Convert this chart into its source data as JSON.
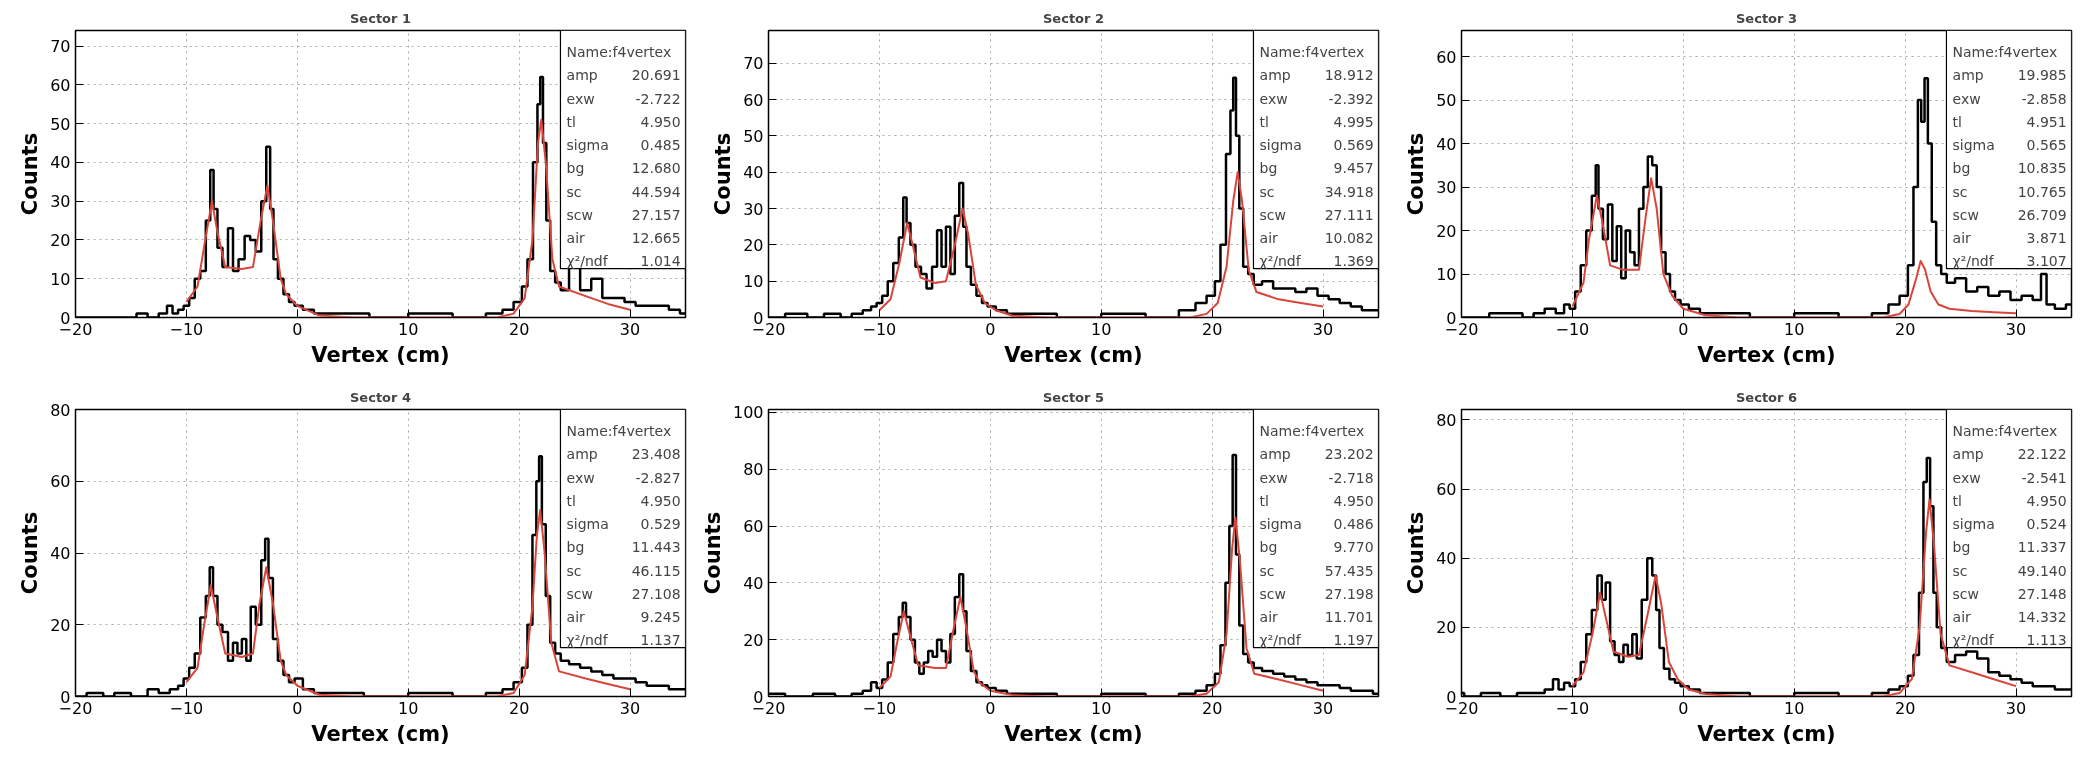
{
  "chart_data": [
    {
      "type": "step",
      "title": "Sector 1",
      "xlabel": "Vertex (cm)",
      "ylabel": "Counts",
      "xlim": [
        -20,
        35
      ],
      "ylim": [
        0,
        74
      ],
      "xticks": [
        -20,
        -10,
        0,
        10,
        20,
        30
      ],
      "yticks": [
        0,
        10,
        20,
        30,
        40,
        50,
        60,
        70
      ],
      "grid": true,
      "annotations": [
        "Name:f4vertex",
        "amp 20.691",
        "exw -2.722",
        "tl 4.950",
        "sigma 0.485",
        "bg 12.680",
        "sc 44.594",
        "scw 27.157",
        "air 12.665",
        "χ²/ndf 1.014"
      ],
      "series": [
        {
          "color": "#000000",
          "x": [
            -20,
            -15,
            -14,
            -13,
            -12,
            -11.5,
            -11,
            -10.5,
            -10,
            -9.5,
            -9,
            -8.5,
            -8,
            -7.7,
            -7.4,
            -7,
            -6.5,
            -6,
            -5.6,
            -5,
            -4.5,
            -4,
            -3.5,
            -3,
            -2.6,
            -2.3,
            -2,
            -1.5,
            -1,
            -0.5,
            0,
            1,
            2,
            3,
            5,
            8,
            12,
            16,
            18,
            19,
            20,
            20.5,
            21,
            21.5,
            21.8,
            22,
            22.3,
            22.6,
            23,
            23.5,
            24,
            25,
            26,
            27,
            28,
            29,
            30,
            31,
            32,
            33,
            34,
            35
          ],
          "values": [
            0,
            0,
            1,
            0,
            1,
            3,
            1,
            2,
            3,
            5,
            10,
            12,
            25,
            38,
            28,
            18,
            13,
            23,
            12,
            15,
            21,
            20,
            17,
            30,
            44,
            28,
            15,
            10,
            6,
            4,
            3,
            2,
            1,
            1,
            1,
            0,
            1,
            0,
            1,
            2,
            4,
            8,
            15,
            40,
            55,
            62,
            45,
            25,
            12,
            9,
            7,
            13,
            7,
            10,
            5,
            5,
            4,
            3,
            3,
            3,
            2,
            1
          ]
        },
        {
          "type": "line",
          "color": "#d9453a",
          "x": [
            -10,
            -9,
            -8.3,
            -7.7,
            -7.2,
            -6.5,
            -5,
            -4,
            -3.3,
            -2.7,
            -2.2,
            -1.5,
            -1,
            0,
            2,
            5,
            18,
            19.5,
            20.5,
            21.2,
            21.7,
            22,
            22.4,
            23,
            23.6,
            26,
            28,
            30
          ],
          "values": [
            4,
            8,
            20,
            30,
            22,
            13,
            12.5,
            13,
            25,
            34,
            25,
            10,
            6,
            3,
            0.5,
            0,
            0,
            1,
            5,
            20,
            45,
            51,
            40,
            15,
            8,
            5.5,
            3.5,
            2
          ]
        }
      ]
    },
    {
      "type": "step",
      "title": "Sector 2",
      "xlabel": "Vertex (cm)",
      "ylabel": "Counts",
      "xlim": [
        -20,
        35
      ],
      "ylim": [
        0,
        79
      ],
      "xticks": [
        -20,
        -10,
        0,
        10,
        20,
        30
      ],
      "yticks": [
        0,
        10,
        20,
        30,
        40,
        50,
        60,
        70
      ],
      "grid": true,
      "annotations": [
        "Name:f4vertex",
        "amp 18.912",
        "exw -2.392",
        "tl 4.995",
        "sigma 0.569",
        "bg 9.457",
        "sc 34.918",
        "scw 27.111",
        "air 10.082",
        "χ²/ndf 1.369"
      ],
      "series": [
        {
          "color": "#000000",
          "x": [
            -20,
            -17,
            -16,
            -14,
            -13,
            -12,
            -11,
            -10.5,
            -10,
            -9.5,
            -9,
            -8.5,
            -8,
            -7.7,
            -7.4,
            -7,
            -6.5,
            -6,
            -5.5,
            -5,
            -4.6,
            -4.2,
            -3.8,
            -3.4,
            -3,
            -2.6,
            -2.3,
            -2,
            -1.5,
            -1,
            -0.5,
            0,
            1,
            2,
            4,
            8,
            12,
            16,
            18,
            19,
            20,
            20.5,
            21,
            21.5,
            21.8,
            22,
            22.3,
            22.6,
            23,
            23.5,
            24,
            25,
            26,
            27,
            28,
            29,
            30,
            31,
            32,
            33,
            34,
            35
          ],
          "values": [
            0,
            1,
            0,
            1,
            0,
            1,
            2,
            3,
            4,
            6,
            10,
            15,
            22,
            33,
            26,
            20,
            14,
            12,
            8,
            14,
            24,
            14,
            25,
            12,
            28,
            37,
            25,
            14,
            9,
            6,
            4,
            3,
            2,
            1,
            1,
            0,
            1,
            0,
            2,
            4,
            6,
            10,
            20,
            45,
            57,
            66,
            50,
            30,
            14,
            12,
            9,
            10,
            8,
            8,
            7,
            8,
            6,
            5,
            4,
            3,
            2,
            2
          ]
        },
        {
          "type": "line",
          "color": "#d9453a",
          "x": [
            -10,
            -9,
            -8.2,
            -7.5,
            -7,
            -6.3,
            -5,
            -4,
            -3.2,
            -2.5,
            -2,
            -1.3,
            -0.5,
            0.5,
            2,
            5,
            18,
            19.5,
            20.5,
            21.3,
            21.9,
            22.3,
            22.7,
            23.3,
            24,
            26,
            28,
            30
          ],
          "values": [
            2,
            5,
            15,
            26,
            20,
            11,
            9.5,
            10,
            20,
            30,
            23,
            9,
            4,
            2,
            0.5,
            0,
            0,
            1,
            4,
            14,
            32,
            40,
            32,
            13,
            7,
            5,
            4,
            3
          ]
        }
      ]
    },
    {
      "type": "step",
      "title": "Sector 3",
      "xlabel": "Vertex (cm)",
      "ylabel": "Counts",
      "xlim": [
        -20,
        35
      ],
      "ylim": [
        0,
        66
      ],
      "xticks": [
        -20,
        -10,
        0,
        10,
        20,
        30
      ],
      "yticks": [
        0,
        10,
        20,
        30,
        40,
        50,
        60
      ],
      "grid": true,
      "annotations": [
        "Name:f4vertex",
        "amp 19.985",
        "exw -2.858",
        "tl 4.951",
        "sigma 0.565",
        "bg 10.835",
        "sc 10.765",
        "scw 26.709",
        "air 3.871",
        "χ²/ndf 3.107"
      ],
      "series": [
        {
          "color": "#000000",
          "x": [
            -20,
            -15,
            -14,
            -13,
            -12,
            -11,
            -10.5,
            -10,
            -9.5,
            -9,
            -8.5,
            -8,
            -7.8,
            -7.5,
            -7,
            -6.6,
            -6.2,
            -5.8,
            -5.4,
            -5,
            -4.6,
            -4.2,
            -3.8,
            -3.4,
            -3,
            -2.6,
            -2.2,
            -1.8,
            -1.4,
            -1,
            -0.5,
            0,
            1,
            2,
            4,
            8,
            12,
            16,
            18,
            19,
            20,
            20.5,
            21,
            21.3,
            21.6,
            21.9,
            22.2,
            22.6,
            23,
            23.5,
            24,
            25,
            26,
            27,
            28,
            29,
            30,
            31,
            32,
            32.5,
            33,
            34,
            35
          ],
          "values": [
            0,
            1,
            0,
            1,
            2,
            1,
            3,
            2,
            6,
            12,
            20,
            28,
            35,
            25,
            18,
            26,
            13,
            21,
            9,
            20,
            15,
            12,
            25,
            30,
            37,
            35,
            30,
            15,
            10,
            6,
            4,
            3,
            2,
            1,
            1,
            0,
            1,
            0,
            1,
            3,
            5,
            12,
            30,
            50,
            45,
            55,
            40,
            22,
            12,
            10,
            8,
            9,
            6,
            7,
            5,
            6,
            4,
            5,
            4,
            10,
            3,
            2,
            3
          ]
        },
        {
          "type": "line",
          "color": "#d9453a",
          "x": [
            -10,
            -9,
            -8.5,
            -7.8,
            -7.3,
            -6.6,
            -5.5,
            -4,
            -3.4,
            -2.9,
            -2.4,
            -1.8,
            -1,
            0,
            2,
            5,
            18,
            19.5,
            20.3,
            21,
            21.4,
            21.8,
            22.3,
            23,
            24,
            26,
            28,
            30
          ],
          "values": [
            2.5,
            8,
            18,
            28,
            22,
            12,
            11,
            11,
            23,
            32,
            25,
            10,
            5,
            2,
            0.5,
            0,
            0,
            0.8,
            3,
            9,
            13,
            11,
            6,
            3,
            2,
            1.5,
            1.2,
            1
          ]
        }
      ]
    },
    {
      "type": "step",
      "title": "Sector 4",
      "xlabel": "Vertex (cm)",
      "ylabel": "Counts",
      "xlim": [
        -20,
        35
      ],
      "ylim": [
        0,
        80
      ],
      "xticks": [
        -20,
        -10,
        0,
        10,
        20,
        30
      ],
      "yticks": [
        0,
        20,
        40,
        60,
        80
      ],
      "grid": true,
      "annotations": [
        "Name:f4vertex",
        "amp 23.408",
        "exw -2.827",
        "tl 4.950",
        "sigma 0.529",
        "bg 11.443",
        "sc 46.115",
        "scw 27.108",
        "air 9.245",
        "χ²/ndf 1.137"
      ],
      "series": [
        {
          "color": "#000000",
          "x": [
            -20,
            -18,
            -17,
            -16,
            -14,
            -13,
            -12,
            -11,
            -10.5,
            -10,
            -9.5,
            -9,
            -8.5,
            -8,
            -7.8,
            -7.4,
            -7,
            -6.5,
            -6,
            -5.6,
            -5.2,
            -4.8,
            -4.4,
            -4,
            -3.5,
            -3,
            -2.8,
            -2.4,
            -2,
            -1.5,
            -1,
            -0.5,
            0,
            1,
            2,
            4,
            8,
            12,
            16,
            18,
            19,
            20,
            20.5,
            21,
            21.4,
            21.7,
            21.9,
            22.2,
            22.6,
            23,
            23.5,
            24,
            25,
            26,
            27,
            28,
            29,
            30,
            31,
            32,
            33,
            34,
            35
          ],
          "values": [
            0,
            1,
            0,
            1,
            0,
            2,
            1,
            2,
            3,
            5,
            8,
            12,
            22,
            28,
            36,
            28,
            20,
            18,
            10,
            15,
            12,
            16,
            10,
            25,
            20,
            38,
            44,
            33,
            16,
            10,
            6,
            4,
            5,
            2,
            1,
            1,
            0,
            1,
            0,
            1,
            2,
            4,
            8,
            20,
            45,
            60,
            67,
            48,
            28,
            15,
            12,
            10,
            9,
            8,
            7,
            6,
            5,
            5,
            4,
            3,
            3,
            2,
            2
          ]
        },
        {
          "type": "line",
          "color": "#d9453a",
          "x": [
            -10,
            -9,
            -8.4,
            -7.8,
            -7.2,
            -6.5,
            -5,
            -4,
            -3.4,
            -2.8,
            -2.2,
            -1.5,
            -1,
            0,
            2,
            5,
            18,
            19.5,
            20.5,
            21.2,
            21.6,
            21.9,
            22.3,
            22.9,
            23.6,
            26,
            28,
            30
          ],
          "values": [
            4,
            8,
            20,
            31,
            22,
            12,
            11,
            12,
            26,
            36,
            26,
            10,
            6,
            3,
            0.5,
            0,
            0,
            1,
            6,
            25,
            45,
            52,
            40,
            15,
            7,
            5,
            3.5,
            2
          ]
        }
      ]
    },
    {
      "type": "step",
      "title": "Sector 5",
      "xlabel": "Vertex (cm)",
      "ylabel": "Counts",
      "xlim": [
        -20,
        35
      ],
      "ylim": [
        0,
        101
      ],
      "xticks": [
        -20,
        -10,
        0,
        10,
        20,
        30
      ],
      "yticks": [
        0,
        20,
        40,
        60,
        80,
        100
      ],
      "grid": true,
      "annotations": [
        "Name:f4vertex",
        "amp 23.202",
        "exw -2.718",
        "tl 4.950",
        "sigma 0.486",
        "bg 9.770",
        "sc 57.435",
        "scw 27.198",
        "air 11.701",
        "χ²/ndf 1.197"
      ],
      "series": [
        {
          "color": "#000000",
          "x": [
            -20,
            -17,
            -15,
            -13,
            -12,
            -11,
            -10.5,
            -10,
            -9.5,
            -9,
            -8.5,
            -8,
            -7.8,
            -7.4,
            -7,
            -6.6,
            -6.2,
            -5.8,
            -5.4,
            -5,
            -4.6,
            -4.2,
            -3.8,
            -3.4,
            -3,
            -2.6,
            -2.3,
            -2,
            -1.5,
            -1,
            -0.5,
            0,
            1,
            2,
            4,
            8,
            12,
            16,
            18,
            19,
            20,
            20.5,
            21,
            21.4,
            21.7,
            22,
            22.3,
            22.6,
            23,
            23.5,
            24,
            25,
            26,
            27,
            28,
            29,
            30,
            31,
            32,
            33,
            34,
            35
          ],
          "values": [
            1,
            0,
            1,
            0,
            1,
            2,
            5,
            3,
            6,
            12,
            22,
            28,
            33,
            28,
            20,
            12,
            8,
            12,
            16,
            14,
            20,
            16,
            12,
            22,
            35,
            43,
            30,
            16,
            9,
            5,
            4,
            3,
            2,
            1,
            1,
            0,
            1,
            0,
            1,
            2,
            4,
            8,
            18,
            40,
            60,
            85,
            50,
            25,
            15,
            12,
            10,
            9,
            8,
            7,
            6,
            5,
            4,
            4,
            3,
            2,
            2,
            1
          ]
        },
        {
          "type": "line",
          "color": "#d9453a",
          "x": [
            -10,
            -9,
            -8.4,
            -7.8,
            -7.2,
            -6.5,
            -5,
            -4,
            -3.3,
            -2.7,
            -2.2,
            -1.5,
            -1,
            0,
            2,
            5,
            18,
            19.5,
            20.6,
            21.3,
            21.8,
            22.1,
            22.5,
            23.1,
            23.8,
            26,
            28,
            30
          ],
          "values": [
            3,
            7,
            19,
            30,
            21,
            11,
            10,
            10,
            24,
            35,
            25,
            9,
            5,
            2,
            0.5,
            0,
            0,
            1,
            5,
            22,
            52,
            63,
            48,
            17,
            8,
            6,
            4,
            2
          ]
        }
      ]
    },
    {
      "type": "step",
      "title": "Sector 6",
      "xlabel": "Vertex (cm)",
      "ylabel": "Counts",
      "xlim": [
        -20,
        35
      ],
      "ylim": [
        0,
        83
      ],
      "xticks": [
        -20,
        -10,
        0,
        10,
        20,
        30
      ],
      "yticks": [
        0,
        20,
        40,
        60,
        80
      ],
      "grid": true,
      "annotations": [
        "Name:f4vertex",
        "amp 22.122",
        "exw -2.541",
        "tl 4.950",
        "sigma 0.524",
        "bg 11.337",
        "sc 49.140",
        "scw 27.148",
        "air 14.332",
        "χ²/ndf 1.113"
      ],
      "series": [
        {
          "color": "#000000",
          "x": [
            -20,
            -19.5,
            -17,
            -16,
            -14,
            -13,
            -12,
            -11.5,
            -11,
            -10.5,
            -10,
            -9.5,
            -9,
            -8.5,
            -8,
            -7.5,
            -7.2,
            -6.8,
            -6.4,
            -6,
            -5.6,
            -5.2,
            -4.8,
            -4.4,
            -4,
            -3.5,
            -3,
            -2.6,
            -2.3,
            -2,
            -1.5,
            -1,
            -0.5,
            0,
            1,
            2,
            4,
            8,
            12,
            16,
            18,
            19,
            20,
            20.5,
            21,
            21.5,
            21.8,
            22.1,
            22.4,
            22.7,
            23,
            23.5,
            24,
            25,
            26,
            27,
            28,
            29,
            30,
            31,
            32,
            33,
            34,
            35
          ],
          "values": [
            1,
            0,
            1,
            0,
            1,
            1,
            2,
            5,
            2,
            4,
            3,
            5,
            10,
            18,
            25,
            35,
            28,
            33,
            16,
            12,
            10,
            15,
            12,
            18,
            11,
            28,
            40,
            35,
            25,
            14,
            8,
            5,
            4,
            3,
            2,
            1,
            1,
            0,
            1,
            0,
            1,
            2,
            3,
            6,
            12,
            30,
            62,
            69,
            55,
            30,
            20,
            14,
            10,
            12,
            13,
            11,
            7,
            6,
            5,
            4,
            3,
            3,
            2,
            2
          ]
        },
        {
          "type": "line",
          "color": "#d9453a",
          "x": [
            -10,
            -9,
            -8.2,
            -7.5,
            -7,
            -6.3,
            -5,
            -4,
            -3.2,
            -2.5,
            -2,
            -1.3,
            -0.5,
            0.5,
            2,
            5,
            18,
            19.5,
            20.6,
            21.3,
            21.9,
            22.2,
            22.6,
            23.2,
            24,
            26,
            28,
            30
          ],
          "values": [
            3,
            7,
            18,
            30,
            23,
            13,
            11.5,
            12,
            24,
            35,
            27,
            10,
            5,
            2,
            0.7,
            0,
            0,
            1,
            5,
            20,
            48,
            57,
            44,
            18,
            9,
            7,
            5,
            3
          ]
        }
      ]
    }
  ]
}
